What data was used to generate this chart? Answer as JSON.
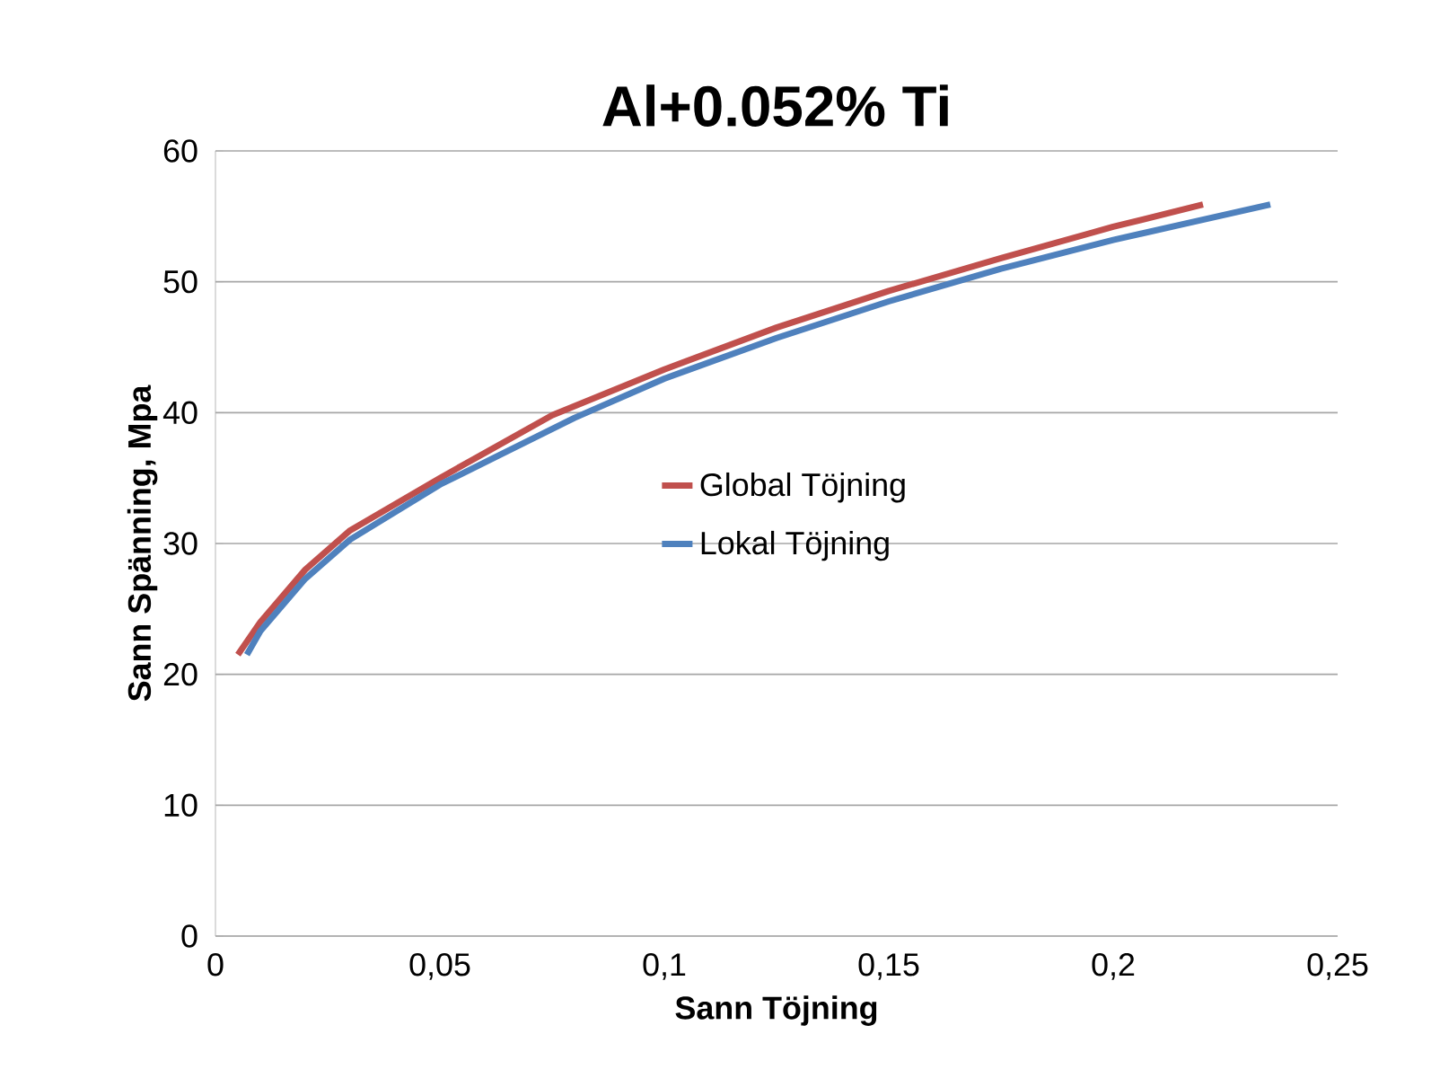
{
  "chart_data": {
    "type": "line",
    "title": "Al+0.052% Ti",
    "xlabel": "Sann Töjning",
    "ylabel": "Sann Spänning, Mpa",
    "xlim": [
      0,
      0.25
    ],
    "ylim": [
      0,
      60
    ],
    "xticks": [
      0,
      {
        "value": 0.05,
        "label": "0,05"
      },
      {
        "value": 0.1,
        "label": "0,1"
      },
      {
        "value": 0.15,
        "label": "0,15"
      },
      {
        "value": 0.2,
        "label": "0,2"
      },
      {
        "value": 0.25,
        "label": "0,25"
      }
    ],
    "yticks": [
      0,
      10,
      20,
      30,
      40,
      50,
      60
    ],
    "grid": "y",
    "legend": "center",
    "marker": "none",
    "line_style": "solid",
    "series": [
      {
        "name": "Global Töjning",
        "color": "#c0504d",
        "x": [
          0.005,
          0.01,
          0.02,
          0.03,
          0.05,
          0.075,
          0.1,
          0.125,
          0.15,
          0.175,
          0.2,
          0.22
        ],
        "values": [
          21.5,
          24,
          28,
          31,
          35,
          39.8,
          43.3,
          46.5,
          49.3,
          51.8,
          54.2,
          55.9
        ]
      },
      {
        "name": "Lokal Töjning",
        "color": "#4f81bd",
        "x": [
          0.007,
          0.01,
          0.02,
          0.03,
          0.05,
          0.08,
          0.1,
          0.125,
          0.15,
          0.175,
          0.2,
          0.235
        ],
        "values": [
          21.5,
          23.3,
          27.3,
          30.3,
          34.5,
          39.6,
          42.6,
          45.7,
          48.5,
          51,
          53.2,
          55.9
        ]
      }
    ]
  }
}
